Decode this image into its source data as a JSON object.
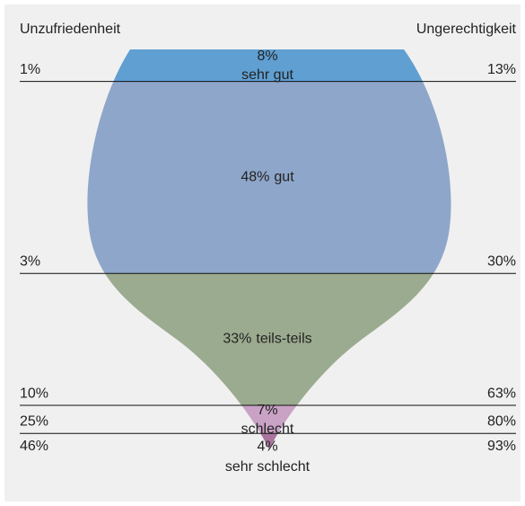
{
  "chart_data": {
    "type": "funnel",
    "categories": [
      "sehr gut",
      "gut",
      "teils-teils",
      "schlecht",
      "sehr schlecht"
    ],
    "values": [
      8,
      48,
      33,
      7,
      4
    ],
    "value_labels": [
      "8%",
      "48%",
      "33%",
      "7%",
      "4%"
    ],
    "colors": [
      "#5f9fd2",
      "#8ea6ca",
      "#9bab8f",
      "#c9a2c6",
      "#a9749f"
    ],
    "series": [
      {
        "name": "Unzufriedenheit",
        "values": [
          1,
          3,
          10,
          25,
          46
        ],
        "value_labels": [
          "1%",
          "3%",
          "10%",
          "25%",
          "46%"
        ]
      },
      {
        "name": "Ungerechtigkeit",
        "values": [
          13,
          30,
          63,
          80,
          93
        ],
        "value_labels": [
          "13%",
          "30%",
          "63%",
          "80%",
          "93%"
        ]
      }
    ]
  }
}
